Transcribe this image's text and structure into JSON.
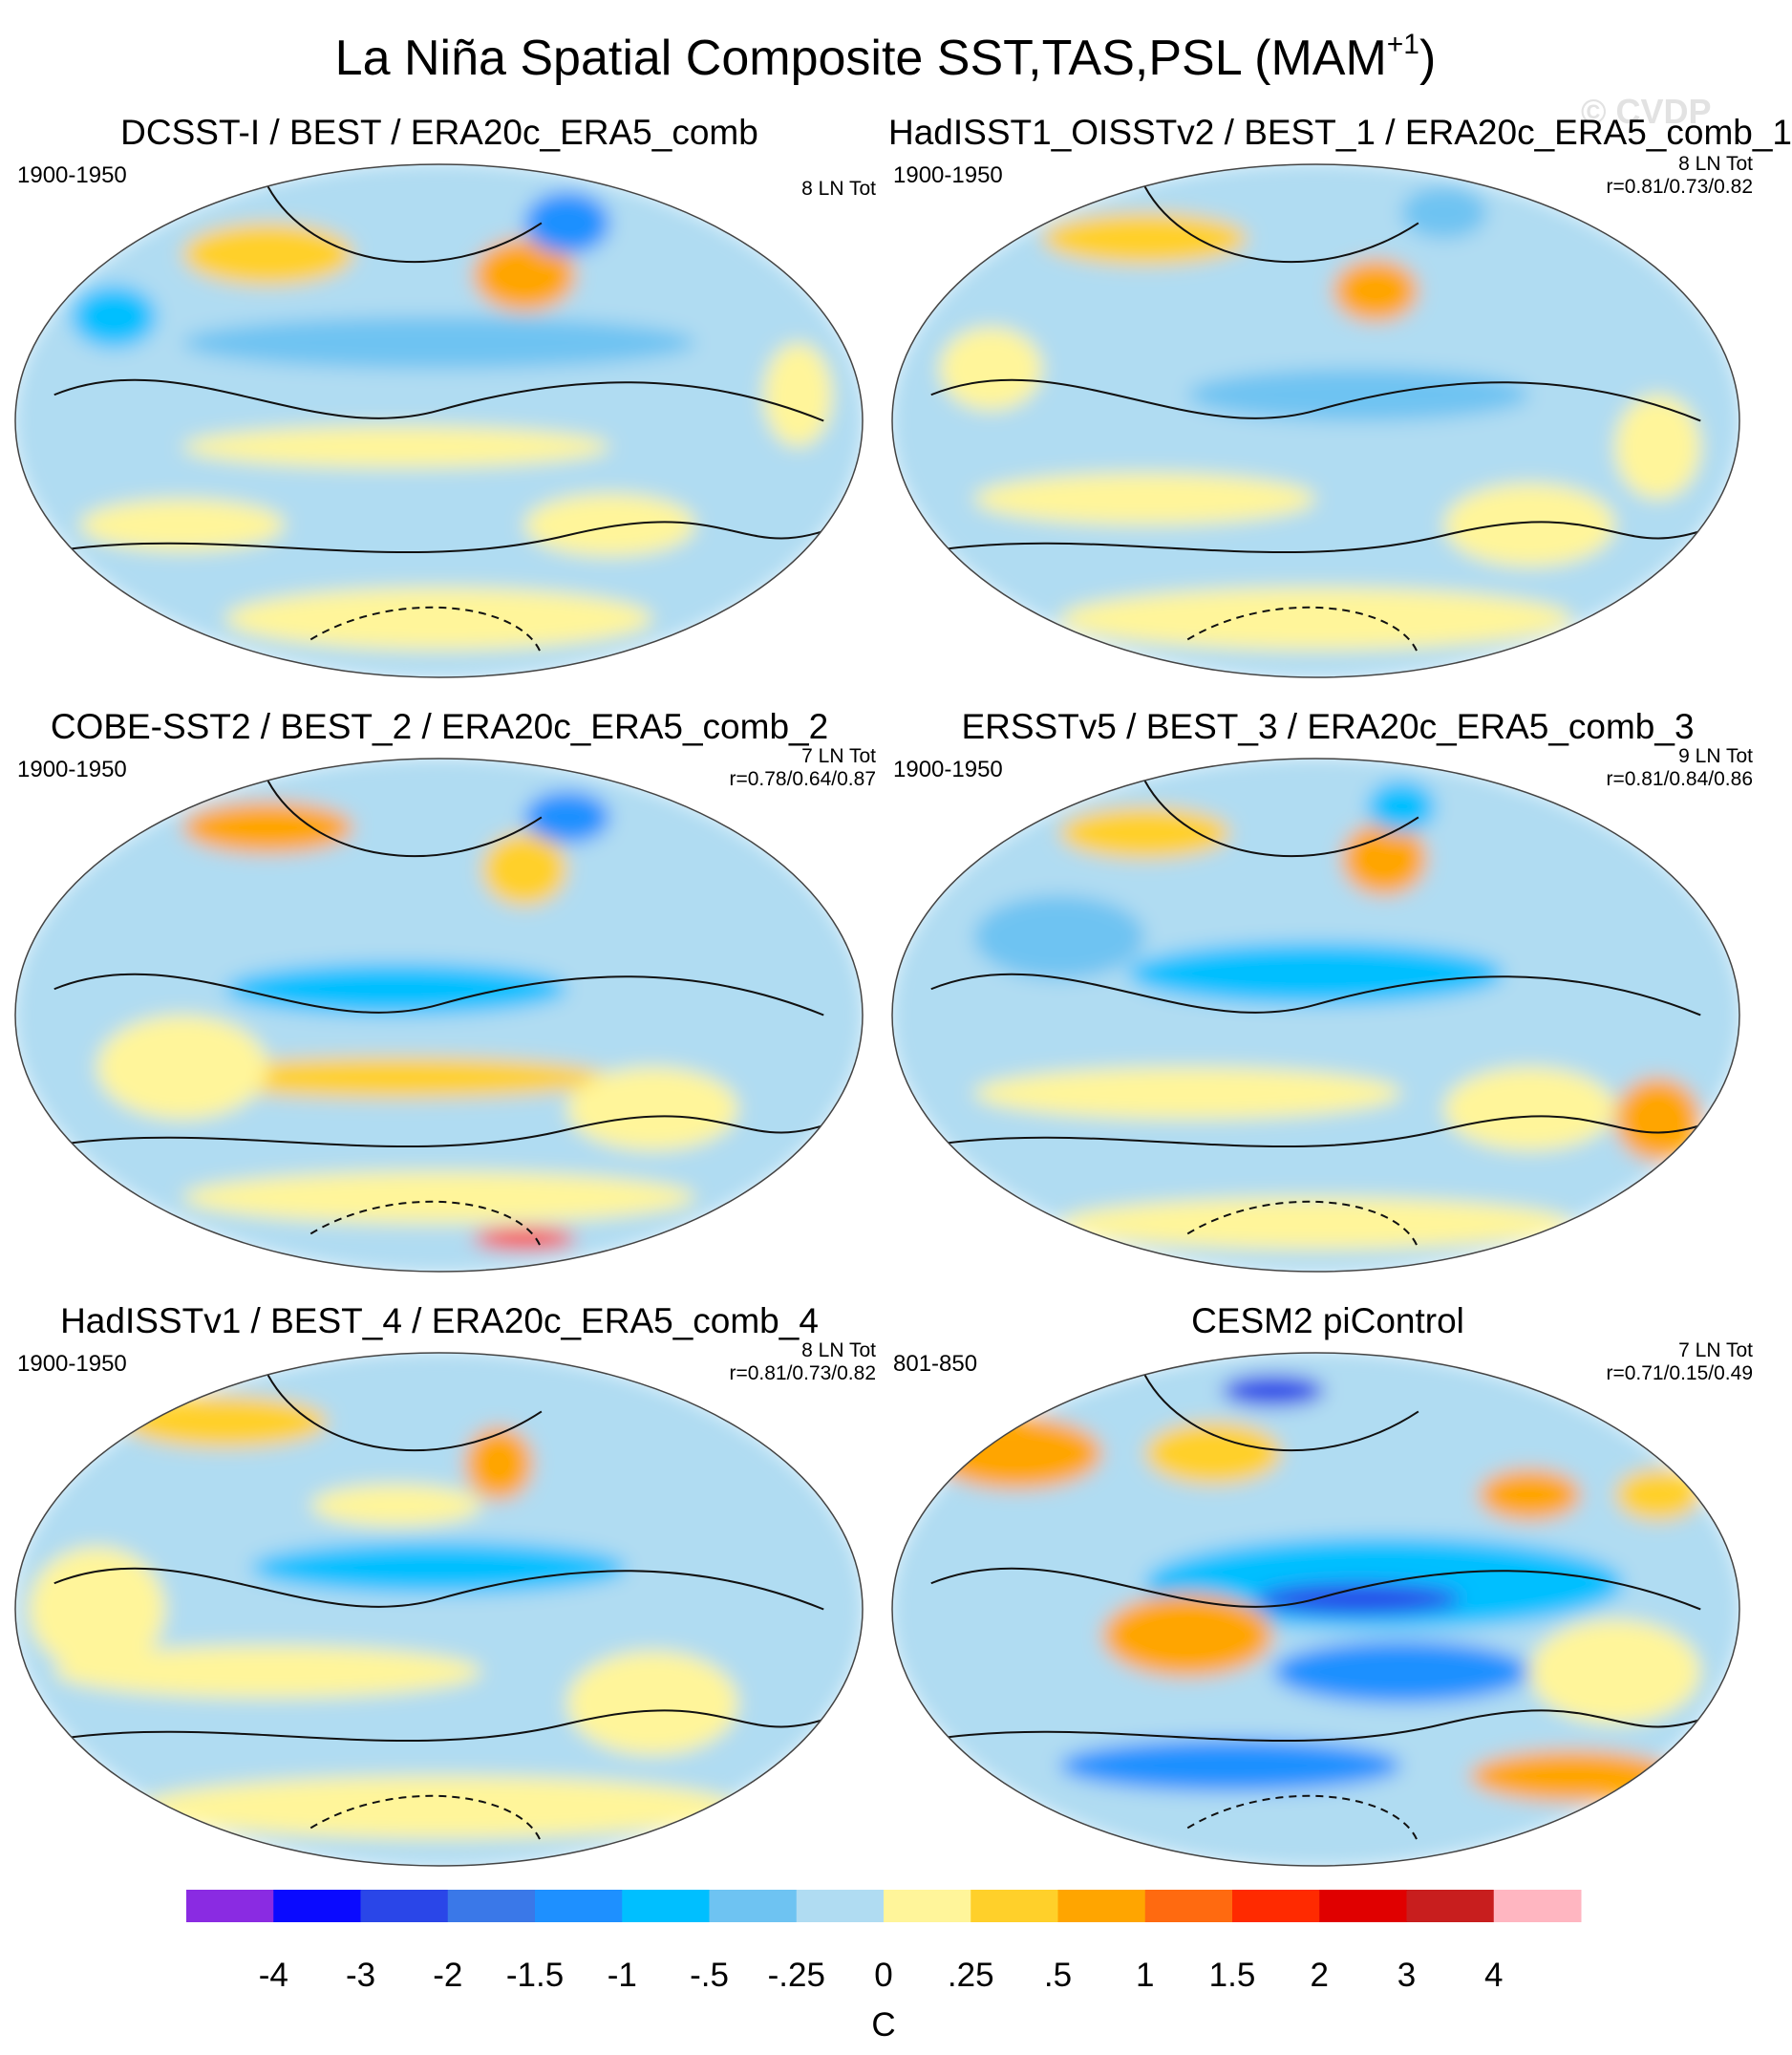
{
  "figure": {
    "title_main": "La Niña Spatial Composite SST,TAS,PSL (MAM",
    "title_sup": "+1",
    "title_close": ")",
    "watermark": "© CVDP"
  },
  "panels": [
    {
      "title": "DCSST-I / BEST / ERA20c_ERA5_comb",
      "period": "1900-1950",
      "count": "8 LN Tot",
      "corr": ""
    },
    {
      "title": "HadISST1_OISSTv2 / BEST_1 / ERA20c_ERA5_comb_1",
      "period": "1900-1950",
      "count": "8 LN Tot",
      "corr": "r=0.81/0.73/0.82"
    },
    {
      "title": "COBE-SST2 / BEST_2 / ERA20c_ERA5_comb_2",
      "period": "1900-1950",
      "count": "7 LN Tot",
      "corr": "r=0.78/0.64/0.87"
    },
    {
      "title": "ERSSTv5 / BEST_3 / ERA20c_ERA5_comb_3",
      "period": "1900-1950",
      "count": "9 LN Tot",
      "corr": "r=0.81/0.84/0.86"
    },
    {
      "title": "HadISSTv1 / BEST_4 / ERA20c_ERA5_comb_4",
      "period": "1900-1950",
      "count": "8 LN Tot",
      "corr": "r=0.81/0.73/0.82"
    },
    {
      "title": "CESM2 piControl",
      "period": "801-850",
      "count": "7 LN Tot",
      "corr": "r=0.71/0.15/0.49"
    }
  ],
  "colorbar": {
    "units": "C",
    "colors": [
      "#8a2be2",
      "#0a0aff",
      "#2a46e8",
      "#3a78e8",
      "#1e90ff",
      "#00bfff",
      "#6ec3f2",
      "#b0dcf2",
      "#fff59a",
      "#ffd02a",
      "#ffa500",
      "#ff6a10",
      "#ff2a00",
      "#e00000",
      "#c81e1e",
      "#ffb6c1"
    ],
    "labels": [
      "-4",
      "-3",
      "-2",
      "-1.5",
      "-1",
      "-.5",
      "-.25",
      "0",
      ".25",
      ".5",
      "1",
      "1.5",
      "2",
      "3",
      "4"
    ]
  },
  "legend_colors": {
    "warm_light": "#fff59a",
    "warm_mid": "#ffd02a",
    "warm": "#ffa500",
    "cool_light": "#b0dcf2",
    "cool_mid": "#6ec3f2",
    "cool": "#00bfff",
    "cool_deep": "#1e90ff"
  }
}
